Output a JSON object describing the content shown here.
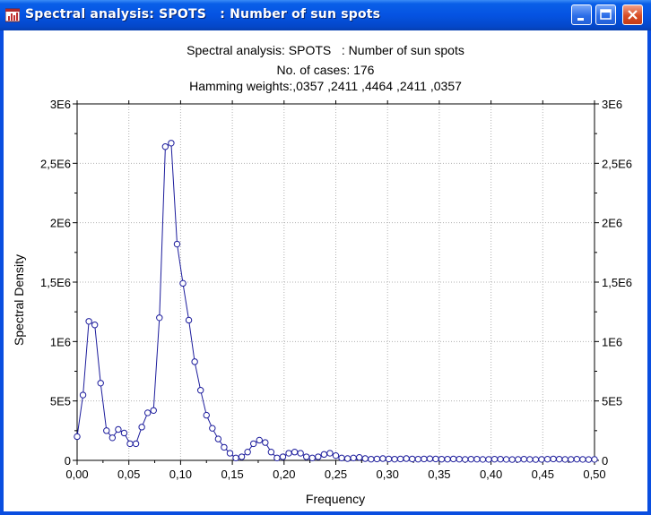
{
  "window": {
    "title": "Spectral analysis: SPOTS   : Number of sun spots"
  },
  "icons": {
    "app": "chart-app-icon",
    "minimize": "minimize-icon",
    "maximize": "maximize-icon",
    "close": "close-icon"
  },
  "colors": {
    "series": "#1c1c9c",
    "marker_fill": "#ffffff",
    "grid": "#b0b0b0"
  },
  "chart_data": {
    "type": "line",
    "title": "Spectral analysis: SPOTS   : Number of sun spots",
    "subtitle_lines": [
      "No. of cases: 176",
      "Hamming weights:,0357 ,2411 ,4464 ,2411 ,0357"
    ],
    "xlabel": "Frequency",
    "ylabel": "Spectral Density",
    "xlim": [
      0,
      0.5
    ],
    "ylim": [
      0,
      3000000
    ],
    "x_ticks": [
      0,
      0.05,
      0.1,
      0.15,
      0.2,
      0.25,
      0.3,
      0.35,
      0.4,
      0.45,
      0.5
    ],
    "x_tick_labels": [
      "0,00",
      "0,05",
      "0,10",
      "0,15",
      "0,20",
      "0,25",
      "0,30",
      "0,35",
      "0,40",
      "0,45",
      "0,50"
    ],
    "y_ticks": [
      0,
      500000,
      1000000,
      1500000,
      2000000,
      2500000,
      3000000
    ],
    "y_tick_labels": [
      "0",
      "5E5",
      "1E6",
      "1,5E6",
      "2E6",
      "2,5E6",
      "3E6"
    ],
    "grid": true,
    "right_axis_mirror": true,
    "series": [
      {
        "x": [
          0,
          0.00568,
          0.01136,
          0.01705,
          0.02273,
          0.02841,
          0.03409,
          0.03977,
          0.04545,
          0.05114,
          0.05682,
          0.0625,
          0.06818,
          0.07386,
          0.07955,
          0.08523,
          0.09091,
          0.09659,
          0.10227,
          0.10795,
          0.11364,
          0.11932,
          0.125,
          0.13068,
          0.13636,
          0.14205,
          0.14773,
          0.15341,
          0.15909,
          0.16477,
          0.17045,
          0.17614,
          0.18182,
          0.1875,
          0.19318,
          0.19886,
          0.20455,
          0.21023,
          0.21591,
          0.22159,
          0.22727,
          0.23295,
          0.23864,
          0.24432,
          0.25,
          0.25568,
          0.26136,
          0.26705,
          0.27273,
          0.27841,
          0.28409,
          0.28977,
          0.29545,
          0.30114,
          0.30682,
          0.3125,
          0.31818,
          0.32386,
          0.32955,
          0.33523,
          0.34091,
          0.34659,
          0.35227,
          0.35795,
          0.36364,
          0.36932,
          0.375,
          0.38068,
          0.38636,
          0.39205,
          0.39773,
          0.40341,
          0.40909,
          0.41477,
          0.42045,
          0.42614,
          0.43182,
          0.4375,
          0.44318,
          0.44886,
          0.45455,
          0.46023,
          0.46591,
          0.47159,
          0.47727,
          0.48295,
          0.48864,
          0.49432,
          0.5
        ],
        "values": [
          200000,
          550000,
          1170000,
          1140000,
          650000,
          250000,
          190000,
          260000,
          230000,
          140000,
          140000,
          280000,
          400000,
          420000,
          1200000,
          2640000,
          2670000,
          1820000,
          1490000,
          1180000,
          830000,
          590000,
          380000,
          270000,
          180000,
          110000,
          60000,
          20000,
          30000,
          70000,
          140000,
          170000,
          150000,
          70000,
          20000,
          30000,
          60000,
          70000,
          60000,
          30000,
          20000,
          30000,
          50000,
          60000,
          40000,
          20000,
          15000,
          20000,
          25000,
          15000,
          10000,
          12000,
          15000,
          12000,
          10000,
          12000,
          15000,
          12000,
          10000,
          12000,
          14000,
          12000,
          10000,
          10000,
          12000,
          10000,
          8000,
          10000,
          10000,
          8000,
          8000,
          10000,
          10000,
          8000,
          7000,
          8000,
          10000,
          8000,
          7000,
          8000,
          10000,
          12000,
          10000,
          8000,
          8000,
          10000,
          8000,
          7000,
          8000
        ]
      }
    ]
  }
}
